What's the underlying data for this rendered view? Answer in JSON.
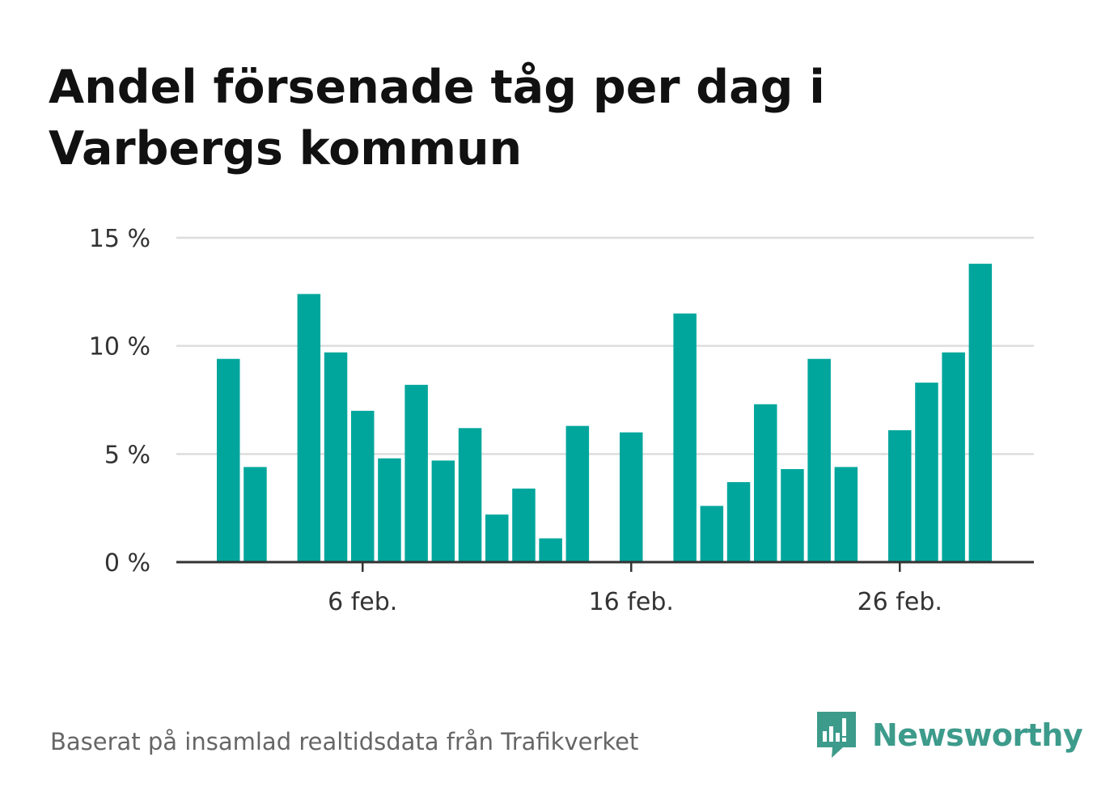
{
  "title": "Andel försenade tåg per dag i Varbergs kommun",
  "footer": {
    "source": "Baserat på insamlad realtidsdata från Trafikverket",
    "brand": "Newsworthy"
  },
  "colors": {
    "bar": "#00a69c",
    "brand": "#3d9b8b",
    "grid": "#dddddd",
    "axis": "#333333"
  },
  "chart_data": {
    "type": "bar",
    "title": "Andel försenade tåg per dag i Varbergs kommun",
    "xlabel": "",
    "ylabel": "",
    "ylim": [
      0,
      15
    ],
    "y_ticks": [
      {
        "value": 0,
        "label": "0 %"
      },
      {
        "value": 5,
        "label": "5 %"
      },
      {
        "value": 10,
        "label": "10 %"
      },
      {
        "value": 15,
        "label": "15 %"
      }
    ],
    "x_ticks": [
      {
        "day": 6,
        "label": "6 feb."
      },
      {
        "day": 16,
        "label": "16 feb."
      },
      {
        "day": 26,
        "label": "26 feb."
      }
    ],
    "grid": true,
    "unit": "%",
    "categories": [
      "1 feb.",
      "2 feb.",
      "3 feb.",
      "4 feb.",
      "5 feb.",
      "6 feb.",
      "7 feb.",
      "8 feb.",
      "9 feb.",
      "10 feb.",
      "11 feb.",
      "12 feb.",
      "13 feb.",
      "14 feb.",
      "15 feb.",
      "16 feb.",
      "17 feb.",
      "18 feb.",
      "19 feb.",
      "20 feb.",
      "21 feb.",
      "22 feb.",
      "23 feb.",
      "24 feb.",
      "25 feb.",
      "26 feb.",
      "27 feb.",
      "28 feb.",
      "29 feb."
    ],
    "values": [
      9.4,
      4.4,
      null,
      12.4,
      9.7,
      7.0,
      4.8,
      8.2,
      4.7,
      6.2,
      2.2,
      3.4,
      1.1,
      6.3,
      null,
      6.0,
      null,
      11.5,
      2.6,
      3.7,
      7.3,
      4.3,
      9.4,
      4.4,
      null,
      6.1,
      8.3,
      9.7,
      13.8
    ]
  }
}
